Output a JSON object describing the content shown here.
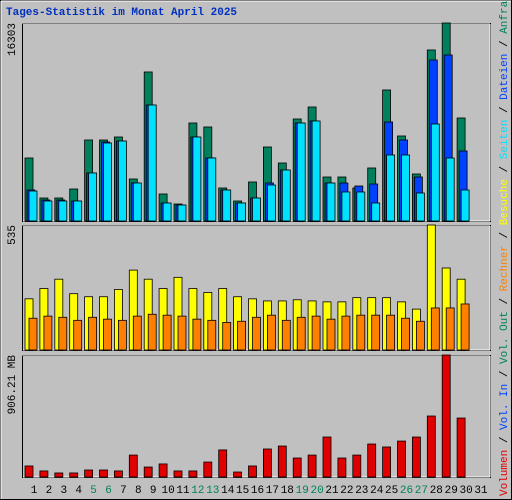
{
  "chart_data": [
    {
      "type": "bar",
      "title": "Tages-Statistik im Monat April 2025",
      "ylim": [
        0,
        16303
      ],
      "yticks": [
        16303
      ],
      "grid": true,
      "series": [
        {
          "name": "Anfragen",
          "color": "#00805c",
          "values": [
            5188,
            1894,
            1894,
            2635,
            6670,
            6670,
            6917,
            3459,
            12270,
            2224,
            1400,
            8070,
            7741,
            2718,
            1647,
            3212,
            6094,
            4776,
            8399,
            9387,
            3623,
            3623,
            2718,
            4365,
            10788,
            7000,
            3871,
            14082,
            16303,
            8482,
            null
          ]
        },
        {
          "name": "Dateien",
          "color": "#0040ff",
          "values": [
            2553,
            1730,
            1730,
            1647,
            3953,
            6506,
            6588,
            3129,
            9552,
            1482,
            1318,
            6917,
            5188,
            2553,
            1482,
            1894,
            3129,
            4200,
            8070,
            8235,
            3129,
            3129,
            2883,
            3047,
            8153,
            6670,
            3623,
            13258,
            13669,
            5764,
            null
          ]
        },
        {
          "name": "Seiten",
          "color": "#00e0ff",
          "values": [
            2470,
            1647,
            1647,
            1647,
            3953,
            6423,
            6588,
            3129,
            9552,
            1482,
            1318,
            6917,
            5188,
            2553,
            1482,
            1894,
            2964,
            4200,
            8070,
            8235,
            3129,
            2388,
            2388,
            1482,
            5435,
            5435,
            2306,
            7988,
            5188,
            2553,
            null
          ]
        }
      ]
    },
    {
      "type": "bar",
      "ylim": [
        0,
        535
      ],
      "yticks": [
        535
      ],
      "grid": true,
      "series": [
        {
          "name": "Besuche",
          "color": "#ffff00",
          "values": [
            219,
            263,
            303,
            241,
            228,
            228,
            259,
            342,
            303,
            263,
            311,
            263,
            246,
            263,
            228,
            219,
            210,
            210,
            215,
            210,
            206,
            206,
            224,
            224,
            224,
            206,
            175,
            535,
            351,
            303,
            null
          ]
        },
        {
          "name": "Rechner",
          "color": "#ff8000",
          "values": [
            136,
            145,
            140,
            127,
            140,
            132,
            127,
            145,
            153,
            149,
            145,
            132,
            127,
            118,
            123,
            140,
            149,
            127,
            140,
            145,
            132,
            145,
            149,
            149,
            149,
            136,
            123,
            180,
            180,
            197,
            null
          ]
        }
      ]
    },
    {
      "type": "bar",
      "ylim": [
        0,
        906.21
      ],
      "yticks": [
        {
          "value": 906.21,
          "label": "906.21 MB"
        }
      ],
      "grid": true,
      "categories": [
        "1",
        "2",
        "3",
        "4",
        "5",
        "6",
        "7",
        "8",
        "9",
        "10",
        "11",
        "12",
        "13",
        "14",
        "15",
        "16",
        "17",
        "18",
        "19",
        "20",
        "21",
        "22",
        "23",
        "24",
        "25",
        "26",
        "27",
        "28",
        "29",
        "30",
        "31"
      ],
      "weekends": [
        "5",
        "6",
        "12",
        "13",
        "19",
        "20",
        "26",
        "27"
      ],
      "weekend_color": "#00805c",
      "series": [
        {
          "name": "Volumen",
          "color": "#e00000",
          "values": [
            82,
            45,
            30,
            30,
            52,
            52,
            45,
            163,
            74,
            97,
            45,
            45,
            111,
            201,
            37,
            82,
            208,
            230,
            141,
            163,
            297,
            141,
            163,
            245,
            223,
            267,
            297,
            453,
            906.21,
            438,
            null
          ]
        },
        {
          "name": "Vol. In",
          "color": "#0040ff",
          "values": [
            null,
            null,
            null,
            null,
            null,
            null,
            null,
            null,
            null,
            null,
            null,
            null,
            null,
            null,
            null,
            null,
            null,
            null,
            null,
            null,
            null,
            null,
            null,
            null,
            null,
            null,
            null,
            null,
            null,
            null,
            null
          ]
        },
        {
          "name": "Vol. Out",
          "color": "#00805c",
          "values": [
            null,
            null,
            null,
            null,
            null,
            null,
            null,
            null,
            null,
            null,
            null,
            null,
            null,
            null,
            null,
            null,
            null,
            null,
            null,
            null,
            null,
            null,
            null,
            null,
            null,
            null,
            null,
            null,
            null,
            null,
            null
          ]
        }
      ]
    }
  ],
  "legend_separator": " / "
}
